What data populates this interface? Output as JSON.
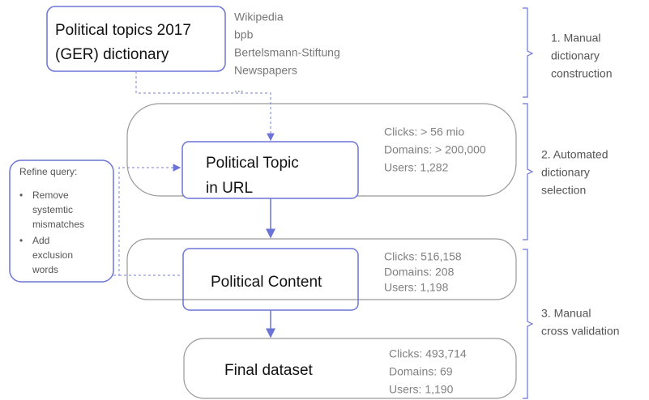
{
  "dictionary": {
    "label": [
      "Political topics 2017",
      "(GER) dictionary"
    ],
    "sources": [
      "Wikipedia",
      "bpb",
      "Bertelsmann-Stiftung",
      "Newspapers",
      "..."
    ]
  },
  "stages": [
    {
      "label": [
        "Political Topic",
        "in URL"
      ],
      "stats": [
        "Clicks: > 56 mio",
        "Domains: > 200,000",
        "Users: 1,282"
      ]
    },
    {
      "label": [
        "Political Content"
      ],
      "stats": [
        "Clicks: 516,158",
        "Domains: 208",
        "Users: 1,198"
      ]
    },
    {
      "label": [
        "Final dataset"
      ],
      "stats": [
        "Clicks: 493,714",
        "Domains: 69",
        "Users: 1,190"
      ]
    }
  ],
  "refine": {
    "title": "Refine query:",
    "items": [
      [
        "Remove",
        "systemtic",
        "mismatches"
      ],
      [
        "Add",
        "exclusion",
        "words"
      ]
    ]
  },
  "phases": [
    [
      "1. Manual",
      "dictionary",
      "construction"
    ],
    [
      "2. Automated",
      "dictionary",
      "selection"
    ],
    [
      "3. Manual",
      "cross validation"
    ]
  ]
}
